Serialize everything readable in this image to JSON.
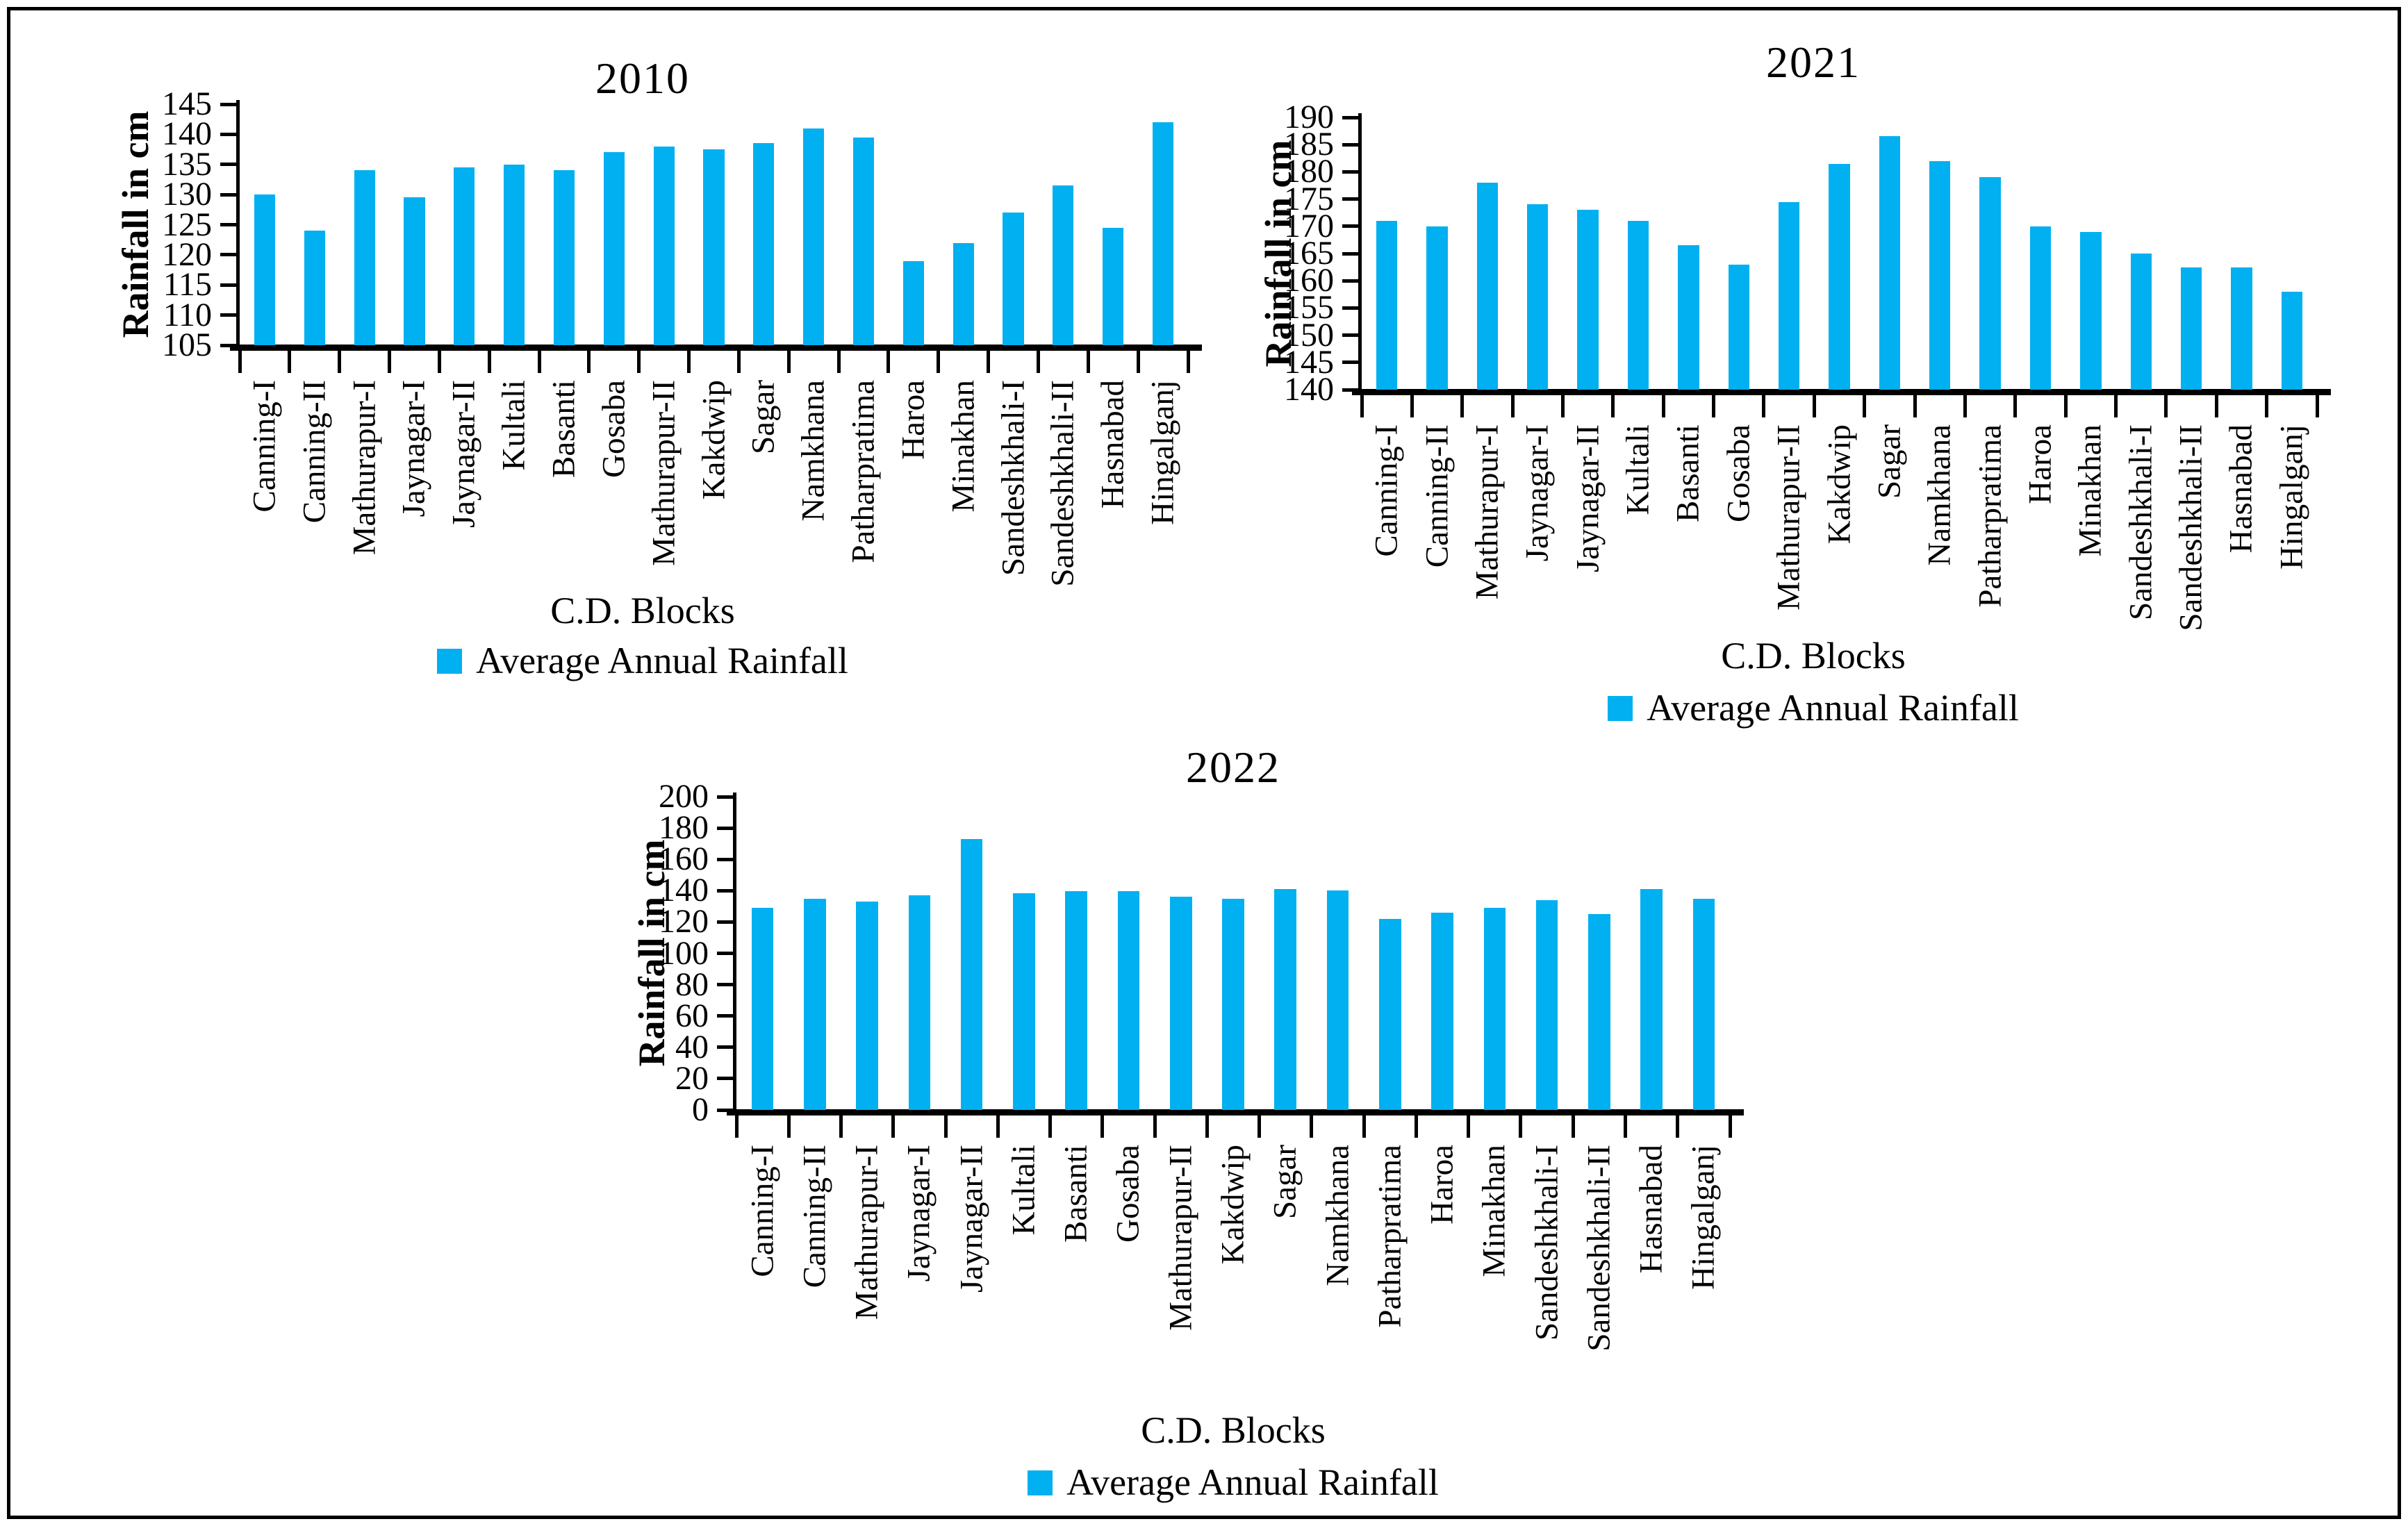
{
  "page": {
    "background": "#ffffff",
    "border_color": "#000000",
    "text_color": "#000000",
    "accent": "#00b0f0"
  },
  "chart_data": [
    {
      "type": "bar",
      "title": "2010",
      "ylabel": "Rainfall in cm",
      "xlabel": "C.D. Blocks",
      "legend": "Average Annual Rainfall",
      "legend_position": "bottom",
      "grid": false,
      "bar_color": "#00b0f0",
      "ylim": [
        105,
        145
      ],
      "ystep": 5,
      "categories": [
        "Canning-I",
        "Canning-II",
        "Mathurapur-I",
        "Jaynagar-I",
        "Jaynagar-II",
        "Kultali",
        "Basanti",
        "Gosaba",
        "Mathurapur-II",
        "Kakdwip",
        "Sagar",
        "Namkhana",
        "Patharpratima",
        "Haroa",
        "Minakhan",
        "Sandeshkhali-I",
        "Sandeshkhali-II",
        "Hasnabad",
        "Hingalganj"
      ],
      "values": [
        130,
        124,
        134,
        129.5,
        134.5,
        135,
        134,
        137,
        138,
        137.5,
        138.5,
        141,
        139.5,
        119,
        122,
        127,
        131.5,
        124.5,
        142
      ]
    },
    {
      "type": "bar",
      "title": "2021",
      "ylabel": "Rainfall in cm",
      "xlabel": "C.D. Blocks",
      "legend": "Average Annual Rainfall",
      "legend_position": "bottom",
      "grid": false,
      "bar_color": "#00b0f0",
      "ylim": [
        140,
        190
      ],
      "ystep": 5,
      "categories": [
        "Canning-I",
        "Canning-II",
        "Mathurapur-I",
        "Jaynagar-I",
        "Jaynagar-II",
        "Kultali",
        "Basanti",
        "Gosaba",
        "Mathurapur-II",
        "Kakdwip",
        "Sagar",
        "Namkhana",
        "Patharpratima",
        "Haroa",
        "Minakhan",
        "Sandeshkhali-I",
        "Sandeshkhali-II",
        "Hasnabad",
        "Hingalganj"
      ],
      "values": [
        171,
        170,
        178,
        174,
        173,
        171,
        166.5,
        163,
        174.5,
        181.5,
        186.5,
        182,
        179,
        170,
        169,
        165,
        162.5,
        162.5,
        158
      ]
    },
    {
      "type": "bar",
      "title": "2022",
      "ylabel": "Rainfall in cm",
      "xlabel": "C.D. Blocks",
      "legend": "Average Annual Rainfall",
      "legend_position": "bottom",
      "grid": false,
      "bar_color": "#00b0f0",
      "ylim": [
        0,
        200
      ],
      "ystep": 20,
      "categories": [
        "Canning-I",
        "Canning-II",
        "Mathurapur-I",
        "Jaynagar-I",
        "Jaynagar-II",
        "Kultali",
        "Basanti",
        "Gosaba",
        "Mathurapur-II",
        "Kakdwip",
        "Sagar",
        "Namkhana",
        "Patharpratima",
        "Haroa",
        "Minakhan",
        "Sandeshkhali-I",
        "Sandeshkhali-II",
        "Hasnabad",
        "Hingalganj"
      ],
      "values": [
        129,
        135,
        133,
        137,
        173,
        138.5,
        139.5,
        139.5,
        136,
        135,
        141,
        140,
        122,
        126,
        129,
        134,
        125,
        141,
        135
      ]
    }
  ]
}
